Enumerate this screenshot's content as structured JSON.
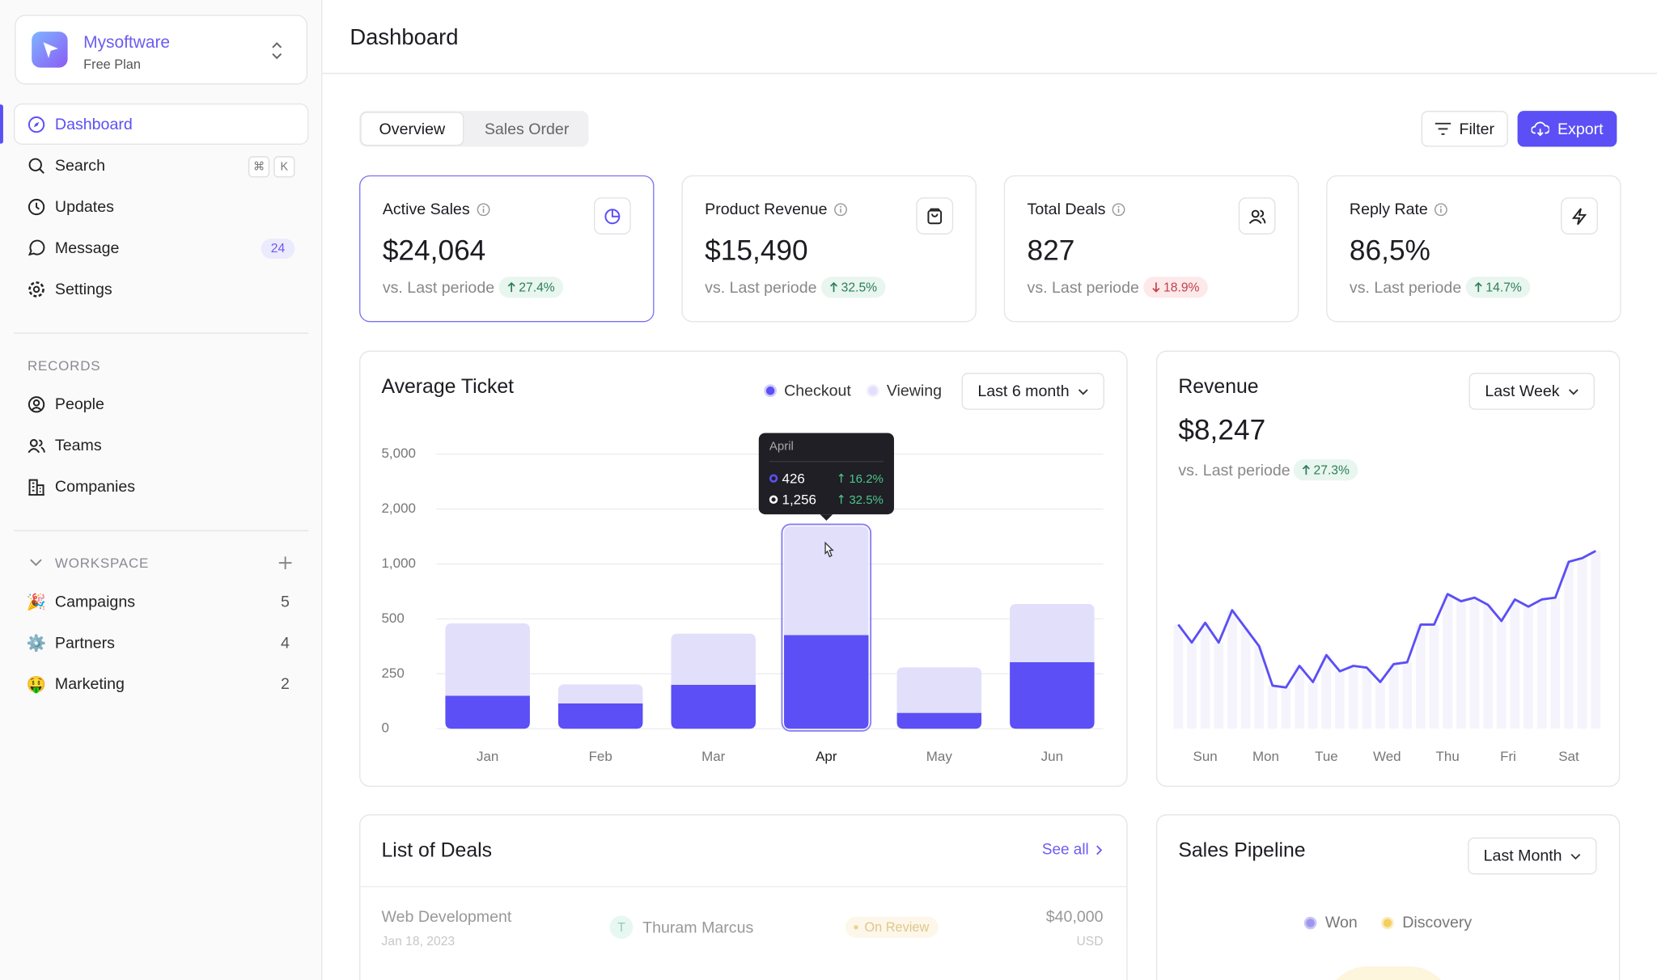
{
  "sidebar": {
    "brand": {
      "name": "Mysoftware",
      "plan": "Free Plan"
    },
    "nav": [
      {
        "label": "Dashboard"
      },
      {
        "label": "Search",
        "shortcut": [
          "⌘",
          "K"
        ]
      },
      {
        "label": "Updates"
      },
      {
        "label": "Message",
        "badge": 24
      },
      {
        "label": "Settings"
      }
    ],
    "records": {
      "title": "RECORDS",
      "items": [
        "People",
        "Teams",
        "Companies"
      ]
    },
    "workspace": {
      "title": "WORKSPACE",
      "items": [
        {
          "icon": "🎉",
          "label": "Campaigns",
          "count": 5
        },
        {
          "icon": "⚙️",
          "label": "Partners",
          "count": 4
        },
        {
          "icon": "🤑",
          "label": "Marketing",
          "count": 2
        }
      ]
    }
  },
  "header": {
    "title": "Dashboard"
  },
  "tabs": [
    "Overview",
    "Sales Order"
  ],
  "actions": [
    "Filter",
    "Export"
  ],
  "stats": [
    {
      "label": "Active Sales",
      "value": "$24,064",
      "compare": "vs. Last periode",
      "change": "27.4%",
      "direction": "up"
    },
    {
      "label": "Product Revenue",
      "value": "$15,490",
      "compare": "vs. Last periode",
      "change": "32.5%",
      "direction": "up"
    },
    {
      "label": "Total Deals",
      "value": "827",
      "compare": "vs. Last periode",
      "change": "18.9%",
      "direction": "down"
    },
    {
      "label": "Reply Rate",
      "value": "86,5%",
      "compare": "vs. Last periode",
      "change": "14.7%",
      "direction": "up"
    }
  ],
  "chart_data": [
    {
      "type": "bar",
      "stacked": true,
      "title": "Average Ticket",
      "range": "Last 6 month",
      "categories": [
        "Jan",
        "Feb",
        "Mar",
        "Apr",
        "May",
        "Jun"
      ],
      "series": [
        {
          "name": "Checkout",
          "color": "#5b4ff5",
          "values": [
            150,
            115,
            200,
            426,
            72,
            303
          ]
        },
        {
          "name": "Viewing",
          "color": "#e2dffb",
          "values": [
            330,
            87,
            233,
            1256,
            207,
            332
          ]
        }
      ],
      "ylim": [
        0,
        5000
      ],
      "yticks": [
        0,
        250,
        500,
        {
          "value": 1000,
          "label": "1,000"
        },
        {
          "value": 2000,
          "label": "2,000"
        },
        {
          "value": 5000,
          "label": "5,000"
        }
      ],
      "grid": true,
      "tooltip": {
        "title": "April",
        "labels": [
          "426",
          "1,256"
        ],
        "changes": [
          "16.2%",
          "32.5%"
        ]
      }
    },
    {
      "type": "line",
      "title": "Revenue",
      "value": "$8,247",
      "compare": "vs. Last periode",
      "change": "27.3%",
      "direction": "up",
      "range": "Last Week",
      "color": "#5b4ff5",
      "x": [
        0,
        1,
        2,
        3,
        4,
        5,
        6,
        7,
        8,
        9,
        10,
        11,
        12,
        13,
        14,
        15,
        16,
        17,
        18,
        19,
        20,
        21,
        22,
        23,
        24,
        25,
        26,
        27,
        28,
        29,
        30,
        31
      ],
      "values": [
        58,
        48,
        59,
        48,
        66,
        56,
        46,
        24,
        23,
        35,
        26,
        41,
        32,
        35,
        34,
        26,
        36,
        37,
        58,
        58,
        75,
        71,
        73,
        69,
        60,
        72,
        68,
        72,
        73,
        93,
        95,
        99
      ],
      "xlim": [
        0,
        31
      ],
      "ylim": [
        0,
        100
      ],
      "xticks": [
        {
          "value": 2,
          "label": "Sun"
        },
        {
          "value": 6.5,
          "label": "Mon"
        },
        {
          "value": 11,
          "label": "Tue"
        },
        {
          "value": 15.5,
          "label": "Wed"
        },
        {
          "value": 20,
          "label": "Thu"
        },
        {
          "value": 24.5,
          "label": "Fri"
        },
        {
          "value": 29,
          "label": "Sat"
        }
      ]
    }
  ],
  "deals": {
    "title": "List of Deals",
    "see_all": "See all",
    "rows": [
      {
        "name": "Web Development",
        "date": "Jan 18, 2023",
        "avatar": "T",
        "person": "Thuram Marcus",
        "status": "On Review",
        "amount": "$40,000",
        "currency": "USD"
      }
    ]
  },
  "pipeline": {
    "title": "Sales Pipeline",
    "range": "Last Month",
    "legend": [
      "Won",
      "Discovery"
    ]
  }
}
